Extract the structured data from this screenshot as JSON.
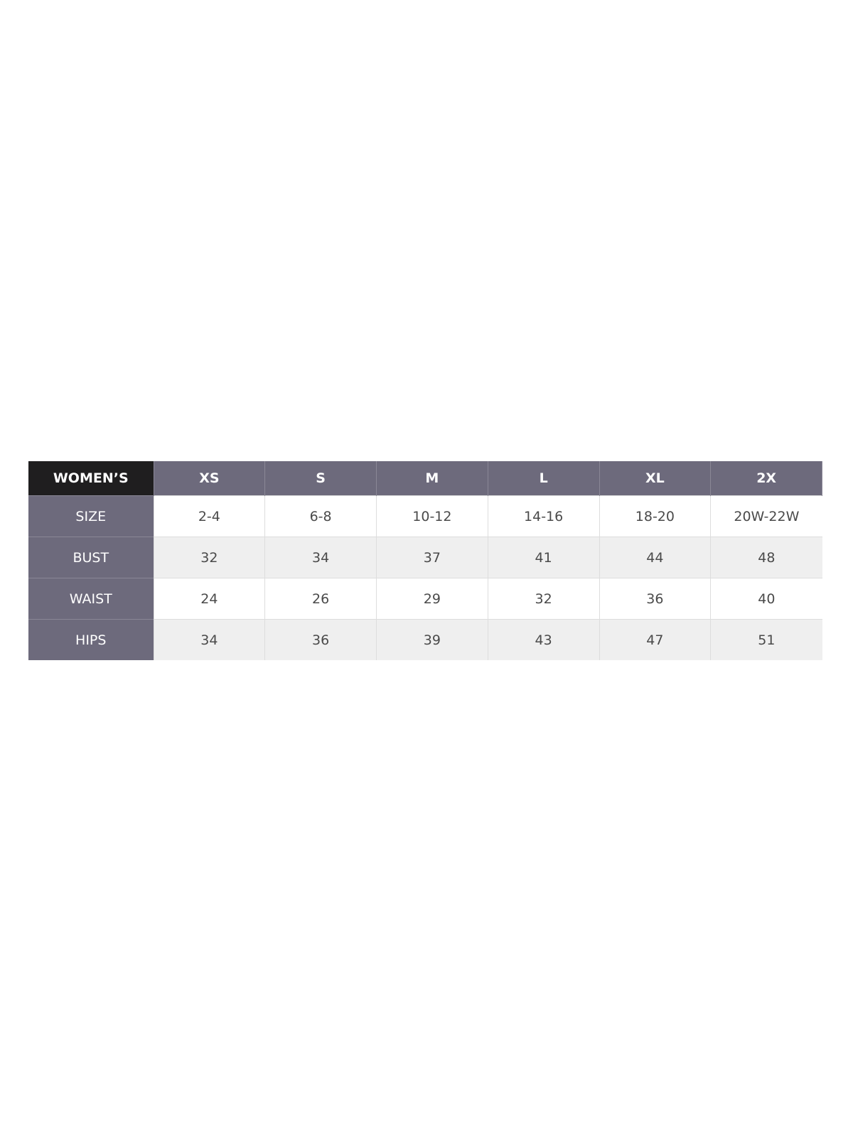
{
  "table": {
    "corner": "WOMEN’S",
    "columns": [
      "XS",
      "S",
      "M",
      "L",
      "XL",
      "2X"
    ],
    "rows": [
      {
        "label": "SIZE",
        "values": [
          "2-4",
          "6-8",
          "10-12",
          "14-16",
          "18-20",
          "20W-22W"
        ]
      },
      {
        "label": "BUST",
        "values": [
          "32",
          "34",
          "37",
          "41",
          "44",
          "48"
        ]
      },
      {
        "label": "WAIST",
        "values": [
          "24",
          "26",
          "29",
          "32",
          "36",
          "40"
        ]
      },
      {
        "label": "HIPS",
        "values": [
          "34",
          "36",
          "39",
          "43",
          "47",
          "51"
        ]
      }
    ]
  },
  "colors": {
    "header": "#6d6a7c",
    "corner": "#1f1e1f",
    "stripe": "#efefef"
  }
}
